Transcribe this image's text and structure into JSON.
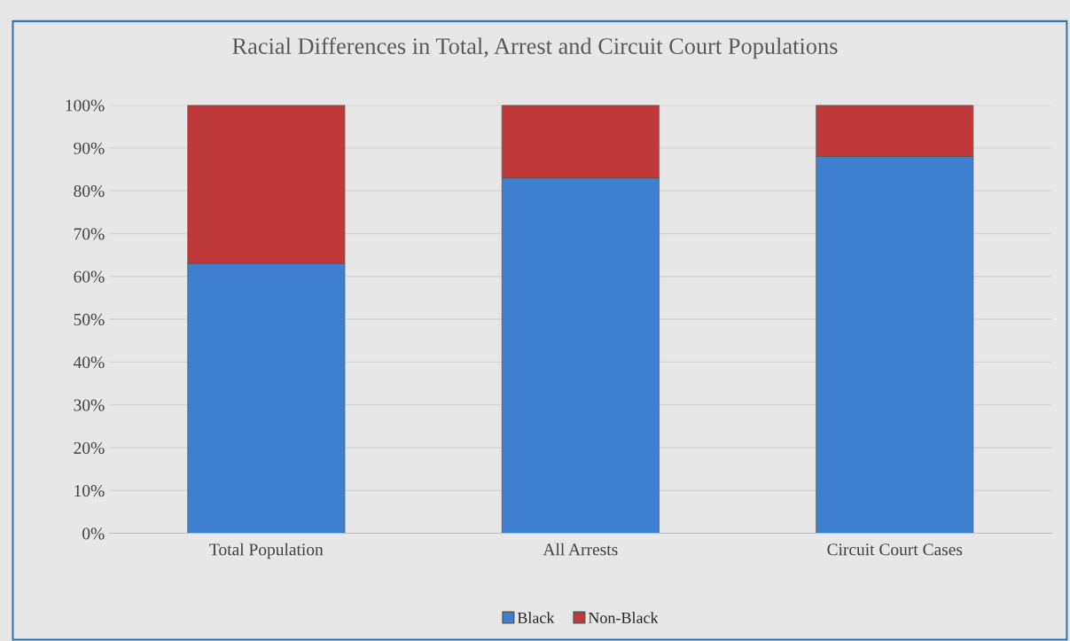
{
  "chart_data": {
    "type": "bar",
    "title": "Racial Differences in Total, Arrest and Circuit Court Populations",
    "categories": [
      "Total Population",
      "All Arrests",
      "Circuit Court Cases"
    ],
    "stacked": true,
    "series": [
      {
        "name": "Black",
        "color": "#3f7fd0",
        "values": [
          63,
          83,
          88
        ]
      },
      {
        "name": "Non-Black",
        "color": "#c0393a",
        "values": [
          37,
          17,
          12
        ]
      }
    ],
    "ylim": [
      0,
      100
    ],
    "yticks": [
      {
        "value": 0,
        "label": "0%"
      },
      {
        "value": 10,
        "label": "10%"
      },
      {
        "value": 20,
        "label": "20%"
      },
      {
        "value": 30,
        "label": "30%"
      },
      {
        "value": 40,
        "label": "40%"
      },
      {
        "value": 50,
        "label": "50%"
      },
      {
        "value": 60,
        "label": "60%"
      },
      {
        "value": 70,
        "label": "70%"
      },
      {
        "value": 80,
        "label": "80%"
      },
      {
        "value": 90,
        "label": "90%"
      },
      {
        "value": 100,
        "label": "100%"
      }
    ],
    "grid": "y",
    "legend": "bottom"
  }
}
